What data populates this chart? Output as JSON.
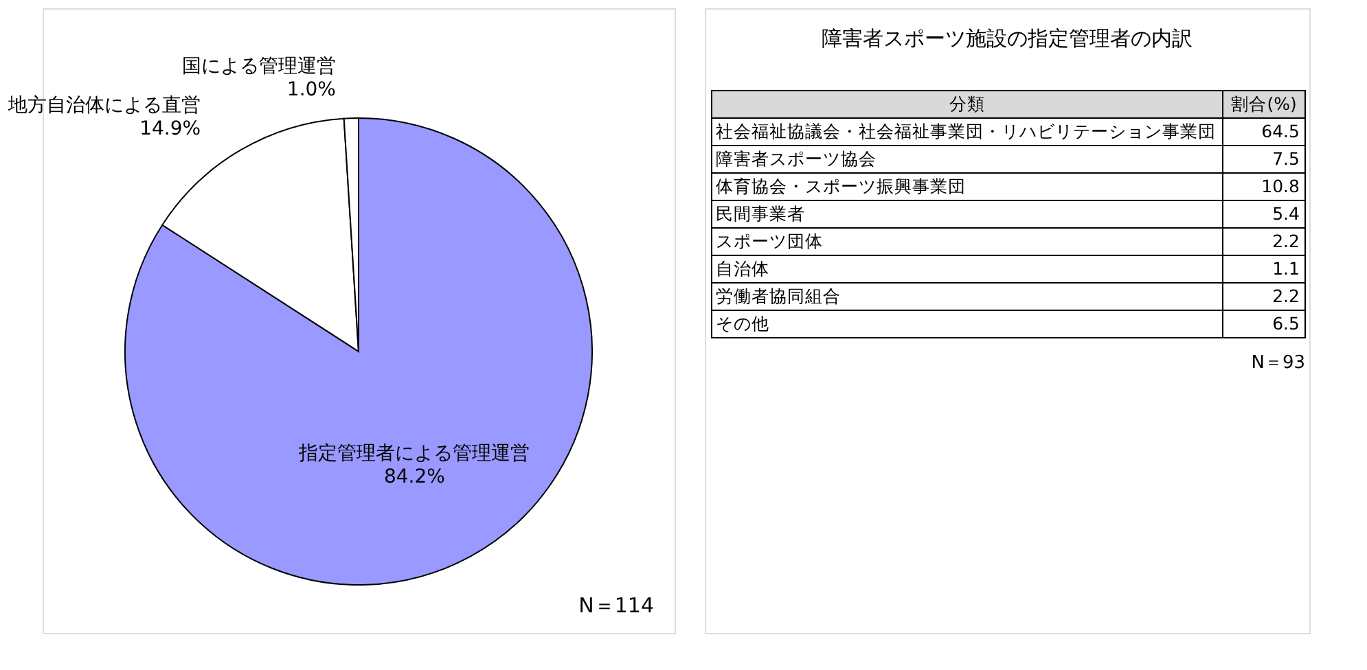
{
  "chart_data": [
    {
      "type": "pie",
      "categories": [
        "指定管理者による管理運営",
        "地方自治体による直営",
        "国による管理運営"
      ],
      "values": [
        84.2,
        14.9,
        1.0
      ],
      "colors": [
        "#9999ff",
        "#ffffff",
        "#ffffff"
      ],
      "value_labels": [
        "84.2%",
        "14.9%",
        "1.0%"
      ],
      "annotations": [
        "N＝114"
      ]
    },
    {
      "type": "other",
      "title": "障害者スポーツ施設の指定管理者の内訳",
      "xlabel": "分類",
      "ylabel": "割合(%)",
      "categories": [
        "社会福祉協議会・社会福祉事業団・リハビリテーション事業団",
        "障害者スポーツ協会",
        "体育協会・スポーツ振興事業団",
        "民間事業者",
        "スポーツ団体",
        "自治体",
        "労働者協同組合",
        "その他"
      ],
      "values": [
        64.5,
        7.5,
        10.8,
        5.4,
        2.2,
        1.1,
        2.2,
        6.5
      ],
      "data_labels": true,
      "annotations": [
        "N＝93"
      ]
    }
  ]
}
